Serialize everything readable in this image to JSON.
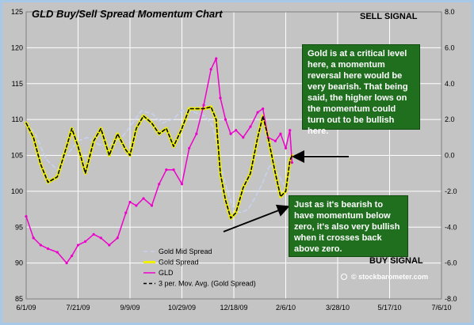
{
  "chart_data": {
    "type": "line",
    "title": "GLD Buy/Sell Spread Momentum Chart",
    "x_ticks": [
      "6/1/09",
      "7/21/09",
      "9/9/09",
      "10/29/09",
      "12/18/09",
      "2/6/10",
      "3/28/10",
      "5/17/10",
      "7/6/10"
    ],
    "y_left": {
      "ylim": [
        85,
        125
      ],
      "ticks": [
        "85",
        "90",
        "95",
        "100",
        "105",
        "110",
        "115",
        "120",
        "125"
      ]
    },
    "y_right": {
      "ylim": [
        -8,
        8
      ],
      "ticks": [
        "-8.0",
        "-6.0",
        "-4.0",
        "-2.0",
        "0.0",
        "2.0",
        "4.0",
        "6.0",
        "8.0"
      ]
    },
    "grid": true,
    "legend_position": "bottom-left",
    "series": [
      {
        "name": "Gold Mid Spread",
        "axis": "right",
        "color": "#c8d2ee",
        "style": "dashed",
        "points": [
          [
            "6/1/09",
            1.8
          ],
          [
            "6/10/09",
            1.2
          ],
          [
            "6/20/09",
            -0.2
          ],
          [
            "7/1/09",
            -0.8
          ],
          [
            "7/10/09",
            0.0
          ],
          [
            "7/21/09",
            0.8
          ],
          [
            "7/30/09",
            1.0
          ],
          [
            "8/10/09",
            0.6
          ],
          [
            "8/20/09",
            0.6
          ],
          [
            "9/1/09",
            1.0
          ],
          [
            "9/9/09",
            1.6
          ],
          [
            "9/20/09",
            2.5
          ],
          [
            "10/1/09",
            2.3
          ],
          [
            "10/10/09",
            1.8
          ],
          [
            "10/20/09",
            2.0
          ],
          [
            "10/29/09",
            2.5
          ],
          [
            "11/10/09",
            2.4
          ],
          [
            "11/20/09",
            2.2
          ],
          [
            "11/28/09",
            1.6
          ],
          [
            "12/5/09",
            -0.5
          ],
          [
            "12/12/09",
            -2.0
          ],
          [
            "12/18/09",
            -3.0
          ],
          [
            "12/25/09",
            -3.2
          ],
          [
            "1/1/10",
            -3.0
          ],
          [
            "1/8/10",
            -2.3
          ],
          [
            "1/15/10",
            -1.5
          ],
          [
            "1/22/10",
            -0.5
          ],
          [
            "1/29/10",
            -1.0
          ],
          [
            "2/6/10",
            -1.8
          ],
          [
            "2/10/10",
            -1.2
          ]
        ]
      },
      {
        "name": "Gold  Spread",
        "axis": "right",
        "color": "#f0f000",
        "style": "solid",
        "points": [
          [
            "6/1/09",
            1.8
          ],
          [
            "6/8/09",
            1.0
          ],
          [
            "6/15/09",
            -0.5
          ],
          [
            "6/22/09",
            -1.5
          ],
          [
            "7/1/09",
            -1.2
          ],
          [
            "7/10/09",
            0.5
          ],
          [
            "7/15/09",
            1.5
          ],
          [
            "7/21/09",
            0.5
          ],
          [
            "7/28/09",
            -1.0
          ],
          [
            "8/5/09",
            0.8
          ],
          [
            "8/12/09",
            1.5
          ],
          [
            "8/20/09",
            0.0
          ],
          [
            "8/28/09",
            1.2
          ],
          [
            "9/5/09",
            0.3
          ],
          [
            "9/9/09",
            0.0
          ],
          [
            "9/15/09",
            1.5
          ],
          [
            "9/22/09",
            2.2
          ],
          [
            "9/30/09",
            1.8
          ],
          [
            "10/7/09",
            1.2
          ],
          [
            "10/14/09",
            1.5
          ],
          [
            "10/21/09",
            0.5
          ],
          [
            "10/29/09",
            1.5
          ],
          [
            "11/5/09",
            2.6
          ],
          [
            "11/12/09",
            2.6
          ],
          [
            "11/19/09",
            2.6
          ],
          [
            "11/26/09",
            2.7
          ],
          [
            "12/1/09",
            2.0
          ],
          [
            "12/5/09",
            -1.0
          ],
          [
            "12/10/09",
            -2.5
          ],
          [
            "12/15/09",
            -3.5
          ],
          [
            "12/20/09",
            -3.2
          ],
          [
            "12/27/09",
            -1.8
          ],
          [
            "1/3/10",
            -1.0
          ],
          [
            "1/10/10",
            1.0
          ],
          [
            "1/15/10",
            2.2
          ],
          [
            "1/20/10",
            1.0
          ],
          [
            "1/27/10",
            -1.0
          ],
          [
            "2/1/10",
            -2.3
          ],
          [
            "2/6/10",
            -2.0
          ],
          [
            "2/10/10",
            -0.3
          ],
          [
            "2/12/10",
            0.0
          ]
        ]
      },
      {
        "name": "GLD",
        "axis": "left",
        "color": "#ee00cc",
        "style": "solid",
        "points": [
          [
            "6/1/09",
            96.5
          ],
          [
            "6/8/09",
            93.5
          ],
          [
            "6/15/09",
            92.5
          ],
          [
            "6/22/09",
            92.0
          ],
          [
            "7/1/09",
            91.5
          ],
          [
            "7/10/09",
            90.0
          ],
          [
            "7/15/09",
            91.0
          ],
          [
            "7/21/09",
            92.5
          ],
          [
            "7/28/09",
            93.0
          ],
          [
            "8/5/09",
            94.0
          ],
          [
            "8/12/09",
            93.5
          ],
          [
            "8/20/09",
            92.5
          ],
          [
            "8/28/09",
            93.5
          ],
          [
            "9/5/09",
            97.0
          ],
          [
            "9/9/09",
            98.5
          ],
          [
            "9/15/09",
            98.0
          ],
          [
            "9/22/09",
            99.0
          ],
          [
            "9/30/09",
            98.0
          ],
          [
            "10/7/09",
            101.0
          ],
          [
            "10/14/09",
            103.0
          ],
          [
            "10/21/09",
            103.0
          ],
          [
            "10/29/09",
            101.0
          ],
          [
            "11/5/09",
            106.0
          ],
          [
            "11/12/09",
            108.0
          ],
          [
            "11/19/09",
            112.0
          ],
          [
            "11/26/09",
            117.0
          ],
          [
            "12/1/09",
            118.5
          ],
          [
            "12/5/09",
            113.0
          ],
          [
            "12/10/09",
            110.0
          ],
          [
            "12/15/09",
            108.0
          ],
          [
            "12/20/09",
            108.5
          ],
          [
            "12/27/09",
            107.5
          ],
          [
            "1/3/10",
            109.0
          ],
          [
            "1/10/10",
            111.0
          ],
          [
            "1/15/10",
            111.5
          ],
          [
            "1/20/10",
            107.5
          ],
          [
            "1/27/10",
            107.0
          ],
          [
            "2/1/10",
            108.0
          ],
          [
            "2/6/10",
            106.0
          ],
          [
            "2/10/10",
            108.5
          ],
          [
            "2/12/10",
            104.0
          ]
        ]
      },
      {
        "name": "3 per. Mov. Avg. (Gold  Spread)",
        "axis": "right",
        "color": "#000000",
        "style": "dashed",
        "points": [
          [
            "6/1/09",
            1.8
          ],
          [
            "6/8/09",
            1.0
          ],
          [
            "6/15/09",
            -0.5
          ],
          [
            "6/22/09",
            -1.5
          ],
          [
            "7/1/09",
            -1.2
          ],
          [
            "7/10/09",
            0.5
          ],
          [
            "7/15/09",
            1.5
          ],
          [
            "7/21/09",
            0.5
          ],
          [
            "7/28/09",
            -1.0
          ],
          [
            "8/5/09",
            0.8
          ],
          [
            "8/12/09",
            1.5
          ],
          [
            "8/20/09",
            0.0
          ],
          [
            "8/28/09",
            1.2
          ],
          [
            "9/5/09",
            0.3
          ],
          [
            "9/9/09",
            0.0
          ],
          [
            "9/15/09",
            1.5
          ],
          [
            "9/22/09",
            2.2
          ],
          [
            "9/30/09",
            1.8
          ],
          [
            "10/7/09",
            1.2
          ],
          [
            "10/14/09",
            1.5
          ],
          [
            "10/21/09",
            0.5
          ],
          [
            "10/29/09",
            1.5
          ],
          [
            "11/5/09",
            2.6
          ],
          [
            "11/12/09",
            2.6
          ],
          [
            "11/19/09",
            2.6
          ],
          [
            "11/26/09",
            2.7
          ],
          [
            "12/1/09",
            2.0
          ],
          [
            "12/5/09",
            -1.0
          ],
          [
            "12/10/09",
            -2.5
          ],
          [
            "12/15/09",
            -3.5
          ],
          [
            "12/20/09",
            -3.2
          ],
          [
            "12/27/09",
            -1.8
          ],
          [
            "1/3/10",
            -1.0
          ],
          [
            "1/10/10",
            1.0
          ],
          [
            "1/15/10",
            2.2
          ],
          [
            "1/20/10",
            1.0
          ],
          [
            "1/27/10",
            -1.0
          ],
          [
            "2/1/10",
            -2.3
          ],
          [
            "2/6/10",
            -2.0
          ],
          [
            "2/10/10",
            -0.3
          ],
          [
            "2/12/10",
            0.0
          ]
        ]
      }
    ],
    "annotations": {
      "sell_signal": "SELL SIGNAL",
      "buy_signal": "BUY SIGNAL",
      "note_top": "Gold is at a critical level here, a momentum reversal here would be very bearish.  That being said, the higher lows on the momentum could turn out to be bullish here.",
      "note_bottom": "Just as it's bearish to have momentum below zero, it's also very bullish when it crosses back above zero.",
      "watermark": "© stockbarometer.com"
    }
  }
}
